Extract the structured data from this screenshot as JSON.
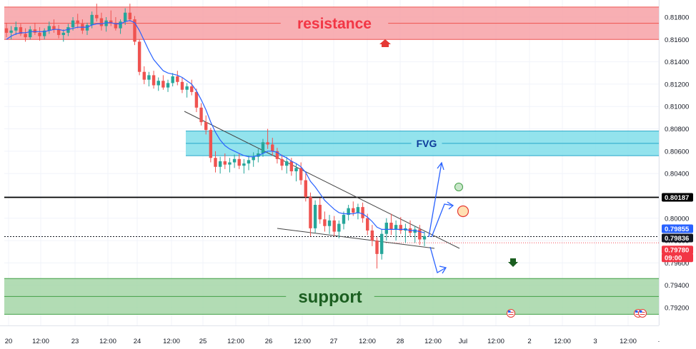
{
  "chart_data": {
    "type": "candlestick",
    "colors": {
      "up": "#26a69a",
      "down": "#ef5350",
      "ma_line": "#2962ff",
      "resistance_fill": "#f7a1a6",
      "support_fill": "#a5d6a7",
      "fvg_fill": "#80deea",
      "trendline": "#454545",
      "projection": "#2962ff",
      "label_blue": "#2962ff",
      "label_mid": "#131722",
      "label_red": "#f23645",
      "level_line": "#000000"
    },
    "y_axis": {
      "range": [
        0.791,
        0.8198
      ],
      "ticks": [
        "0.81800",
        "0.81600",
        "0.81400",
        "0.81200",
        "0.81000",
        "0.80800",
        "0.80600",
        "0.80400",
        "0.80200",
        "0.80000",
        "0.79800",
        "0.79600",
        "0.79400",
        "0.79200"
      ],
      "tick_values": [
        0.818,
        0.816,
        0.814,
        0.812,
        0.81,
        0.808,
        0.806,
        0.804,
        0.802,
        0.8,
        0.798,
        0.796,
        0.794,
        0.792
      ]
    },
    "x_axis": {
      "ticks": [
        "20",
        "12:00",
        "23",
        "12:00",
        "24",
        "12:00",
        "25",
        "12:00",
        "26",
        "12:00",
        "27",
        "12:00",
        "28",
        "12:00",
        "Jul",
        "12:00",
        "2",
        "12:00",
        "3",
        "12:00",
        "·"
      ]
    },
    "price_labels": [
      {
        "text": "0.80187",
        "value": 0.80187,
        "style": "black"
      },
      {
        "text": "0.79855",
        "value": 0.79855,
        "style": "blue"
      },
      {
        "text": "0.79836",
        "value": 0.79836,
        "style": "dark"
      },
      {
        "text": "0.79780",
        "value": 0.7978,
        "style": "red"
      },
      {
        "text": "09:00",
        "value": 0.7978,
        "style": "red-sub"
      }
    ],
    "zones": [
      {
        "name": "resistance",
        "label": "resistance",
        "low": 0.816,
        "high": 0.8189
      },
      {
        "name": "fvg",
        "label": "FVG",
        "low": 0.8056,
        "high": 0.8078
      },
      {
        "name": "support",
        "label": "support",
        "low": 0.7914,
        "high": 0.7946
      }
    ],
    "horizontal_level": 0.80187,
    "current_price": 0.79836,
    "candles_ohlc": [
      [
        0.817,
        0.8175,
        0.8162,
        0.8166
      ],
      [
        0.8166,
        0.8172,
        0.816,
        0.8168
      ],
      [
        0.8168,
        0.8176,
        0.8164,
        0.8171
      ],
      [
        0.8171,
        0.8174,
        0.8163,
        0.8165
      ],
      [
        0.8165,
        0.817,
        0.8158,
        0.8162
      ],
      [
        0.8162,
        0.8172,
        0.816,
        0.8169
      ],
      [
        0.8169,
        0.8175,
        0.8164,
        0.8166
      ],
      [
        0.8166,
        0.8171,
        0.8159,
        0.8163
      ],
      [
        0.8163,
        0.817,
        0.816,
        0.8168
      ],
      [
        0.8168,
        0.8176,
        0.8165,
        0.8172
      ],
      [
        0.8172,
        0.8178,
        0.8166,
        0.8169
      ],
      [
        0.8169,
        0.8173,
        0.8161,
        0.8164
      ],
      [
        0.8164,
        0.8169,
        0.8158,
        0.8166
      ],
      [
        0.8166,
        0.8174,
        0.8163,
        0.8171
      ],
      [
        0.8171,
        0.818,
        0.8168,
        0.8177
      ],
      [
        0.8177,
        0.8183,
        0.817,
        0.8174
      ],
      [
        0.8174,
        0.8178,
        0.8165,
        0.8168
      ],
      [
        0.8168,
        0.8175,
        0.8164,
        0.8173
      ],
      [
        0.8173,
        0.8185,
        0.817,
        0.8182
      ],
      [
        0.8182,
        0.8192,
        0.8176,
        0.8179
      ],
      [
        0.8179,
        0.8184,
        0.8168,
        0.8172
      ],
      [
        0.8172,
        0.818,
        0.8167,
        0.8177
      ],
      [
        0.8177,
        0.8186,
        0.8172,
        0.8175
      ],
      [
        0.8175,
        0.818,
        0.8168,
        0.817
      ],
      [
        0.817,
        0.8178,
        0.8165,
        0.8176
      ],
      [
        0.8176,
        0.8188,
        0.8173,
        0.8184
      ],
      [
        0.8184,
        0.8192,
        0.8176,
        0.8178
      ],
      [
        0.8178,
        0.8181,
        0.8155,
        0.8158
      ],
      [
        0.8158,
        0.816,
        0.8128,
        0.8131
      ],
      [
        0.8131,
        0.8136,
        0.812,
        0.8124
      ],
      [
        0.8124,
        0.8131,
        0.8118,
        0.8128
      ],
      [
        0.8128,
        0.8132,
        0.8116,
        0.8119
      ],
      [
        0.8119,
        0.8126,
        0.8114,
        0.8123
      ],
      [
        0.8123,
        0.8128,
        0.8115,
        0.8117
      ],
      [
        0.8117,
        0.8124,
        0.8113,
        0.8121
      ],
      [
        0.8121,
        0.813,
        0.8118,
        0.8127
      ],
      [
        0.8127,
        0.8132,
        0.8119,
        0.8122
      ],
      [
        0.8122,
        0.8126,
        0.8112,
        0.8115
      ],
      [
        0.8115,
        0.8121,
        0.8108,
        0.8118
      ],
      [
        0.8118,
        0.8124,
        0.811,
        0.8113
      ],
      [
        0.8113,
        0.8116,
        0.8095,
        0.8099
      ],
      [
        0.8099,
        0.8103,
        0.8083,
        0.8086
      ],
      [
        0.8086,
        0.8092,
        0.8075,
        0.8079
      ],
      [
        0.8079,
        0.8081,
        0.805,
        0.8054
      ],
      [
        0.8054,
        0.806,
        0.8041,
        0.8046
      ],
      [
        0.8046,
        0.8055,
        0.804,
        0.8051
      ],
      [
        0.8051,
        0.8058,
        0.8044,
        0.8048
      ],
      [
        0.8048,
        0.8054,
        0.8041,
        0.805
      ],
      [
        0.805,
        0.8057,
        0.8045,
        0.8053
      ],
      [
        0.8053,
        0.8058,
        0.8044,
        0.8047
      ],
      [
        0.8047,
        0.8053,
        0.804,
        0.8049
      ],
      [
        0.8049,
        0.8056,
        0.8043,
        0.8052
      ],
      [
        0.8052,
        0.8059,
        0.8046,
        0.8055
      ],
      [
        0.8055,
        0.8062,
        0.805,
        0.8058
      ],
      [
        0.8058,
        0.8071,
        0.8055,
        0.8068
      ],
      [
        0.8068,
        0.808,
        0.8062,
        0.8066
      ],
      [
        0.8066,
        0.8072,
        0.8056,
        0.806
      ],
      [
        0.806,
        0.8063,
        0.8049,
        0.8053
      ],
      [
        0.8053,
        0.8057,
        0.8043,
        0.8047
      ],
      [
        0.8047,
        0.8055,
        0.804,
        0.8051
      ],
      [
        0.8051,
        0.8054,
        0.8038,
        0.8042
      ],
      [
        0.8042,
        0.8049,
        0.8033,
        0.8045
      ],
      [
        0.8045,
        0.805,
        0.803,
        0.8034
      ],
      [
        0.8034,
        0.804,
        0.8015,
        0.8019
      ],
      [
        0.8019,
        0.8023,
        0.7984,
        0.7991
      ],
      [
        0.7991,
        0.8016,
        0.7987,
        0.8012
      ],
      [
        0.8012,
        0.8018,
        0.7995,
        0.7999
      ],
      [
        0.7999,
        0.8006,
        0.7988,
        0.7993
      ],
      [
        0.7993,
        0.8003,
        0.7986,
        0.7998
      ],
      [
        0.7998,
        0.8002,
        0.7984,
        0.7988
      ],
      [
        0.7988,
        0.7998,
        0.7982,
        0.7995
      ],
      [
        0.7995,
        0.8006,
        0.799,
        0.8003
      ],
      [
        0.8003,
        0.8012,
        0.7998,
        0.8009
      ],
      [
        0.8009,
        0.8015,
        0.8002,
        0.8005
      ],
      [
        0.8005,
        0.8013,
        0.7999,
        0.801
      ],
      [
        0.801,
        0.8014,
        0.7996,
        0.8
      ],
      [
        0.8,
        0.8004,
        0.7985,
        0.7989
      ],
      [
        0.7989,
        0.7994,
        0.7975,
        0.798
      ],
      [
        0.798,
        0.7983,
        0.7955,
        0.7968
      ],
      [
        0.7968,
        0.799,
        0.7963,
        0.7986
      ],
      [
        0.7986,
        0.8,
        0.798,
        0.7996
      ],
      [
        0.7996,
        0.8004,
        0.7985,
        0.799
      ],
      [
        0.799,
        0.7998,
        0.798,
        0.7994
      ],
      [
        0.7994,
        0.8001,
        0.7986,
        0.7989
      ],
      [
        0.7989,
        0.7995,
        0.7978,
        0.7991
      ],
      [
        0.7991,
        0.7998,
        0.7984,
        0.7987
      ],
      [
        0.7987,
        0.7993,
        0.7978,
        0.799
      ],
      [
        0.799,
        0.7994,
        0.7976,
        0.7981
      ],
      [
        0.7981,
        0.7988,
        0.7975,
        0.7984
      ]
    ],
    "moving_average": [
      0.816,
      0.8163,
      0.8165,
      0.8166,
      0.8166,
      0.8167,
      0.8167,
      0.8167,
      0.8167,
      0.8168,
      0.8169,
      0.8169,
      0.8168,
      0.8169,
      0.817,
      0.8171,
      0.8171,
      0.8171,
      0.8173,
      0.8174,
      0.8174,
      0.8175,
      0.8175,
      0.8174,
      0.8174,
      0.8176,
      0.8177,
      0.8175,
      0.8168,
      0.8159,
      0.815,
      0.8142,
      0.8137,
      0.8132,
      0.813,
      0.8129,
      0.8128,
      0.8126,
      0.8123,
      0.812,
      0.8114,
      0.8106,
      0.8097,
      0.8086,
      0.8077,
      0.807,
      0.8065,
      0.8062,
      0.806,
      0.8058,
      0.8056,
      0.8055,
      0.8055,
      0.8056,
      0.8058,
      0.806,
      0.806,
      0.8059,
      0.8056,
      0.8054,
      0.8051,
      0.8049,
      0.8046,
      0.8041,
      0.8033,
      0.8028,
      0.8022,
      0.8016,
      0.8012,
      0.8008,
      0.8005,
      0.8004,
      0.8004,
      0.8004,
      0.8005,
      0.8004,
      0.8001,
      0.7997,
      0.7992,
      0.799,
      0.799,
      0.799,
      0.799,
      0.799,
      0.799,
      0.7989,
      0.7989,
      0.7988,
      0.7987
    ]
  }
}
